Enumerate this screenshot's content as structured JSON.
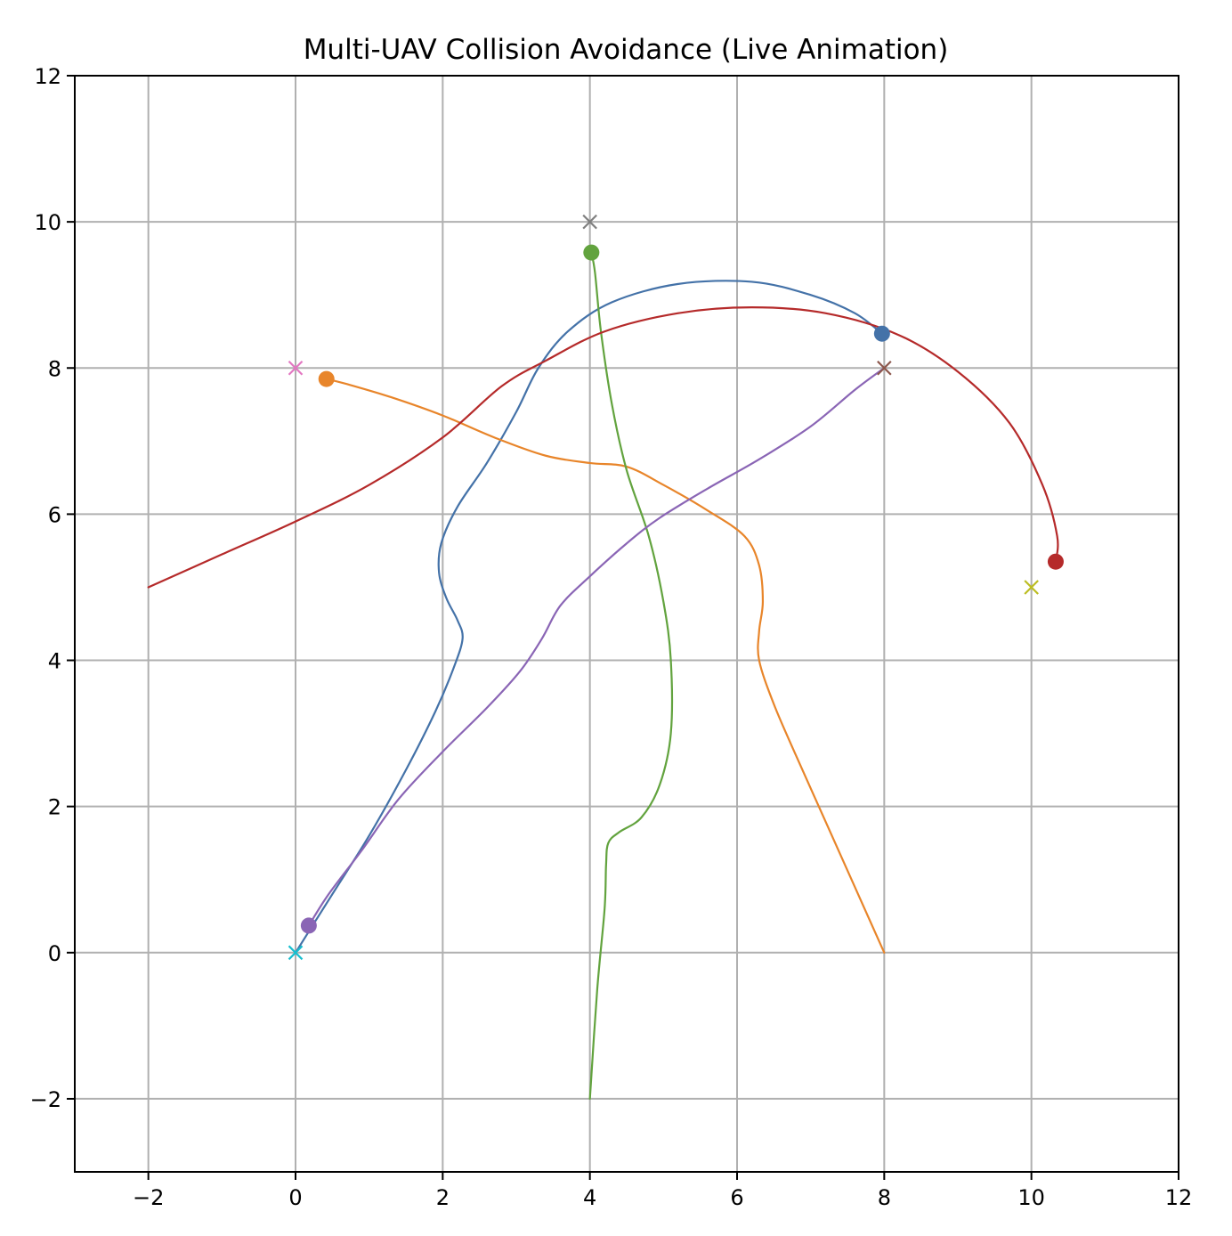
{
  "chart_data": {
    "type": "line",
    "title": "Multi-UAV Collision Avoidance (Live Animation)",
    "xlabel": "",
    "ylabel": "",
    "xlim": [
      -3,
      12
    ],
    "ylim": [
      -3,
      12
    ],
    "xticks": [
      -2,
      0,
      2,
      4,
      6,
      8,
      10,
      12
    ],
    "yticks": [
      -2,
      0,
      2,
      4,
      6,
      8,
      10,
      12
    ],
    "xtick_labels": [
      "−2",
      "0",
      "2",
      "4",
      "6",
      "8",
      "10",
      "12"
    ],
    "ytick_labels": [
      "−2",
      "0",
      "2",
      "4",
      "6",
      "8",
      "10",
      "12"
    ],
    "grid": true,
    "legend": "none",
    "series": [
      {
        "color": "#4472a8",
        "points": [
          [
            0,
            0
          ],
          [
            0.5,
            0.8
          ],
          [
            1.0,
            1.6
          ],
          [
            1.5,
            2.5
          ],
          [
            1.9,
            3.3
          ],
          [
            2.15,
            3.9
          ],
          [
            2.27,
            4.3
          ],
          [
            2.2,
            4.55
          ],
          [
            2.05,
            4.85
          ],
          [
            1.95,
            5.2
          ],
          [
            1.98,
            5.6
          ],
          [
            2.2,
            6.1
          ],
          [
            2.6,
            6.7
          ],
          [
            3.0,
            7.4
          ],
          [
            3.3,
            8.0
          ],
          [
            3.7,
            8.5
          ],
          [
            4.3,
            8.9
          ],
          [
            5.2,
            9.15
          ],
          [
            6.2,
            9.18
          ],
          [
            7.0,
            9.0
          ],
          [
            7.6,
            8.75
          ],
          [
            7.97,
            8.47
          ]
        ],
        "end_marker": [
          7.97,
          8.47
        ]
      },
      {
        "color": "#e8852a",
        "points": [
          [
            8,
            0
          ],
          [
            7.6,
            0.9
          ],
          [
            7.2,
            1.8
          ],
          [
            6.8,
            2.7
          ],
          [
            6.5,
            3.4
          ],
          [
            6.3,
            4.0
          ],
          [
            6.3,
            4.4
          ],
          [
            6.35,
            4.8
          ],
          [
            6.3,
            5.3
          ],
          [
            6.1,
            5.7
          ],
          [
            5.6,
            6.05
          ],
          [
            5.0,
            6.4
          ],
          [
            4.5,
            6.65
          ],
          [
            4.0,
            6.7
          ],
          [
            3.4,
            6.8
          ],
          [
            2.7,
            7.05
          ],
          [
            2.0,
            7.35
          ],
          [
            1.3,
            7.6
          ],
          [
            0.7,
            7.78
          ],
          [
            0.42,
            7.85
          ]
        ],
        "end_marker": [
          0.42,
          7.85
        ]
      },
      {
        "color": "#62a33e",
        "points": [
          [
            4,
            -2
          ],
          [
            4.1,
            -0.5
          ],
          [
            4.2,
            0.6
          ],
          [
            4.22,
            1.2
          ],
          [
            4.25,
            1.5
          ],
          [
            4.4,
            1.65
          ],
          [
            4.7,
            1.85
          ],
          [
            4.95,
            2.3
          ],
          [
            5.1,
            3.0
          ],
          [
            5.1,
            4.0
          ],
          [
            5.0,
            4.8
          ],
          [
            4.8,
            5.7
          ],
          [
            4.5,
            6.6
          ],
          [
            4.3,
            7.5
          ],
          [
            4.15,
            8.5
          ],
          [
            4.07,
            9.3
          ],
          [
            4.02,
            9.58
          ]
        ],
        "end_marker": [
          4.02,
          9.58
        ]
      },
      {
        "color": "#b52a2a",
        "points": [
          [
            -2,
            5
          ],
          [
            -1,
            5.45
          ],
          [
            0,
            5.9
          ],
          [
            1,
            6.4
          ],
          [
            2,
            7.05
          ],
          [
            2.8,
            7.75
          ],
          [
            3.4,
            8.1
          ],
          [
            4.2,
            8.5
          ],
          [
            5.2,
            8.75
          ],
          [
            6.2,
            8.83
          ],
          [
            7.2,
            8.75
          ],
          [
            8.2,
            8.45
          ],
          [
            9.0,
            7.95
          ],
          [
            9.7,
            7.25
          ],
          [
            10.15,
            6.4
          ],
          [
            10.35,
            5.7
          ],
          [
            10.33,
            5.35
          ]
        ],
        "end_marker": [
          10.33,
          5.35
        ]
      },
      {
        "color": "#8a65b5",
        "points": [
          [
            8,
            8
          ],
          [
            7.6,
            7.7
          ],
          [
            7.0,
            7.2
          ],
          [
            6.3,
            6.75
          ],
          [
            5.6,
            6.35
          ],
          [
            4.95,
            5.95
          ],
          [
            4.5,
            5.6
          ],
          [
            4.0,
            5.15
          ],
          [
            3.6,
            4.75
          ],
          [
            3.35,
            4.3
          ],
          [
            3.05,
            3.85
          ],
          [
            2.6,
            3.35
          ],
          [
            2.0,
            2.75
          ],
          [
            1.4,
            2.1
          ],
          [
            0.9,
            1.4
          ],
          [
            0.45,
            0.8
          ],
          [
            0.18,
            0.37
          ]
        ],
        "end_marker": [
          0.18,
          0.37
        ]
      }
    ],
    "goal_markers": [
      {
        "x": 4,
        "y": 10,
        "color": "#7f7f7f"
      },
      {
        "x": 0,
        "y": 8,
        "color": "#e377c2"
      },
      {
        "x": 8,
        "y": 8,
        "color": "#8c564b"
      },
      {
        "x": 10,
        "y": 5,
        "color": "#bcbd22"
      },
      {
        "x": 0,
        "y": 0,
        "color": "#17becf"
      }
    ]
  }
}
